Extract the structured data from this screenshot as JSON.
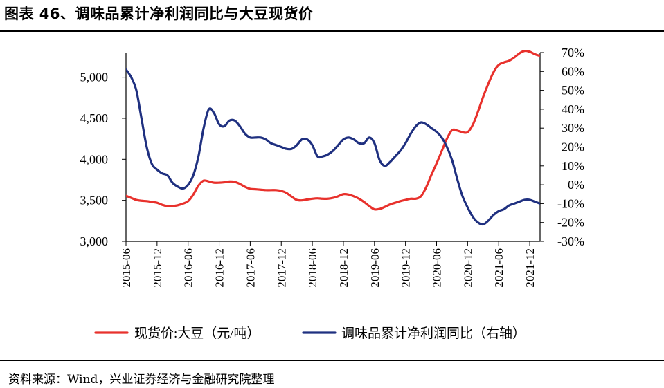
{
  "header": {
    "title": "图表 46、调味品累计净利润同比与大豆现货价"
  },
  "footer": {
    "source": "资料来源：Wind，兴业证券经济与金融研究院整理"
  },
  "chart_data": {
    "type": "line",
    "x": [
      "2015-06",
      "2015-07",
      "2015-08",
      "2015-09",
      "2015-10",
      "2015-11",
      "2015-12",
      "2016-01",
      "2016-02",
      "2016-03",
      "2016-04",
      "2016-05",
      "2016-06",
      "2016-07",
      "2016-08",
      "2016-09",
      "2016-10",
      "2016-11",
      "2016-12",
      "2017-01",
      "2017-02",
      "2017-03",
      "2017-04",
      "2017-05",
      "2017-06",
      "2017-07",
      "2017-08",
      "2017-09",
      "2017-10",
      "2017-11",
      "2017-12",
      "2018-01",
      "2018-02",
      "2018-03",
      "2018-04",
      "2018-05",
      "2018-06",
      "2018-07",
      "2018-08",
      "2018-09",
      "2018-10",
      "2018-11",
      "2018-12",
      "2019-01",
      "2019-02",
      "2019-03",
      "2019-04",
      "2019-05",
      "2019-06",
      "2019-07",
      "2019-08",
      "2019-09",
      "2019-10",
      "2019-11",
      "2019-12",
      "2020-01",
      "2020-02",
      "2020-03",
      "2020-04",
      "2020-05",
      "2020-06",
      "2020-07",
      "2020-08",
      "2020-09",
      "2020-10",
      "2020-11",
      "2020-12",
      "2021-01",
      "2021-02",
      "2021-03",
      "2021-04",
      "2021-05",
      "2021-06",
      "2021-07",
      "2021-08",
      "2021-09",
      "2021-10",
      "2021-11",
      "2021-12",
      "2022-01",
      "2022-02"
    ],
    "x_tick_labels": [
      "2015-06",
      "2015-12",
      "2016-06",
      "2016-12",
      "2017-06",
      "2017-12",
      "2018-06",
      "2018-12",
      "2019-06",
      "2019-12",
      "2020-06",
      "2020-12",
      "2021-06",
      "2021-12"
    ],
    "y_left": {
      "range": [
        3000,
        5300
      ],
      "ticks": [
        "3,000",
        "3,500",
        "4,000",
        "4,500",
        "5,000"
      ],
      "tick_values": [
        3000,
        3500,
        4000,
        4500,
        5000
      ]
    },
    "y_right": {
      "range": [
        -30,
        70
      ],
      "ticks": [
        "-30%",
        "-20%",
        "-10%",
        "0%",
        "10%",
        "20%",
        "30%",
        "40%",
        "50%",
        "60%",
        "70%"
      ],
      "tick_values": [
        -30,
        -20,
        -10,
        0,
        10,
        20,
        30,
        40,
        50,
        60,
        70
      ]
    },
    "series": [
      {
        "name": "现货价:大豆（元/吨）",
        "axis": "left",
        "color": "#e8312c",
        "values": [
          3555,
          3530,
          3505,
          3495,
          3490,
          3480,
          3470,
          3445,
          3430,
          3430,
          3440,
          3460,
          3490,
          3570,
          3680,
          3740,
          3730,
          3715,
          3715,
          3720,
          3730,
          3725,
          3700,
          3665,
          3640,
          3635,
          3630,
          3625,
          3625,
          3625,
          3615,
          3590,
          3545,
          3505,
          3500,
          3510,
          3520,
          3525,
          3520,
          3520,
          3530,
          3550,
          3575,
          3570,
          3550,
          3520,
          3480,
          3430,
          3390,
          3395,
          3420,
          3450,
          3470,
          3490,
          3505,
          3520,
          3520,
          3550,
          3660,
          3810,
          3950,
          4100,
          4250,
          4355,
          4350,
          4330,
          4330,
          4420,
          4580,
          4760,
          4920,
          5060,
          5150,
          5180,
          5200,
          5240,
          5290,
          5320,
          5310,
          5280,
          5260
        ]
      },
      {
        "name": "调味品累计净利润同比（右轴）",
        "axis": "right",
        "color": "#1f3080",
        "values": [
          61,
          57,
          50,
          35,
          20,
          11,
          8,
          6,
          5,
          1,
          -1,
          -2,
          0,
          5,
          15,
          30,
          40,
          38,
          32,
          31,
          34,
          34,
          31,
          27,
          25,
          25,
          25,
          24,
          22,
          21,
          20,
          19,
          19,
          21,
          24,
          24,
          21,
          15,
          15,
          16,
          18,
          21,
          24,
          25,
          24,
          22,
          22,
          25,
          22,
          13,
          10,
          12,
          15,
          18,
          22,
          27,
          31,
          33,
          32,
          30,
          28,
          25,
          20,
          13,
          3,
          -6,
          -12,
          -17,
          -20,
          -21,
          -19,
          -16,
          -14,
          -13,
          -11,
          -10,
          -9,
          -8,
          -8,
          -9,
          -10
        ]
      }
    ],
    "legend_position": "bottom",
    "grid": false
  }
}
